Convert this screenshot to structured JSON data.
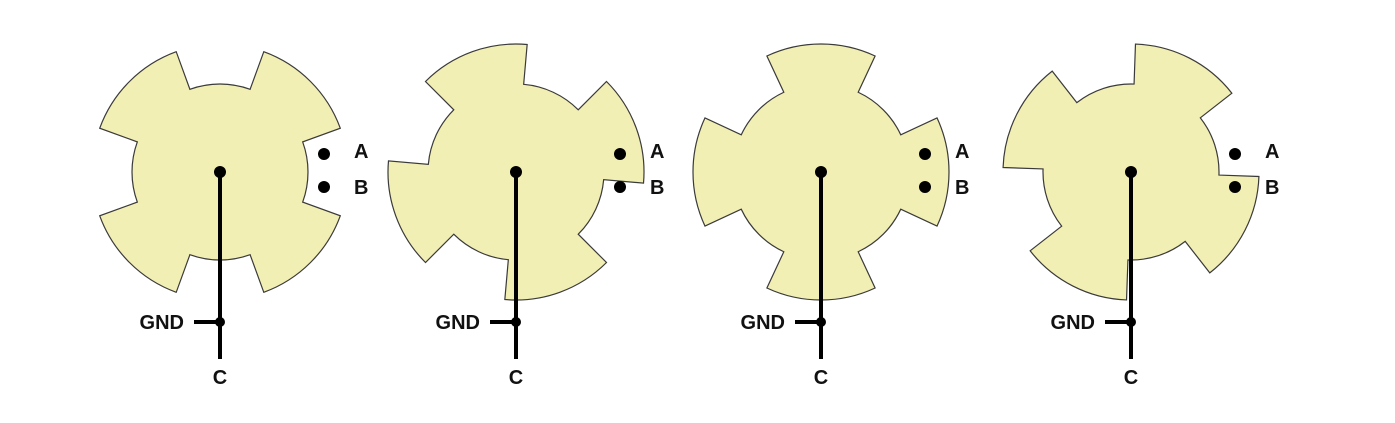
{
  "colors": {
    "encoder_fill": "#f2efb4",
    "encoder_outline": "#3a3a3a",
    "wire": "#000000",
    "text": "#111111"
  },
  "encoders": [
    {
      "rotation_deg": 0,
      "contacts": {
        "a": "A",
        "b": "B",
        "ground": "GND",
        "common": "C"
      }
    },
    {
      "rotation_deg": 25,
      "contacts": {
        "a": "A",
        "b": "B",
        "ground": "GND",
        "common": "C"
      }
    },
    {
      "rotation_deg": 45,
      "contacts": {
        "a": "A",
        "b": "B",
        "ground": "GND",
        "common": "C"
      }
    },
    {
      "rotation_deg": 72,
      "contacts": {
        "a": "A",
        "b": "B",
        "ground": "GND",
        "common": "C"
      }
    }
  ]
}
